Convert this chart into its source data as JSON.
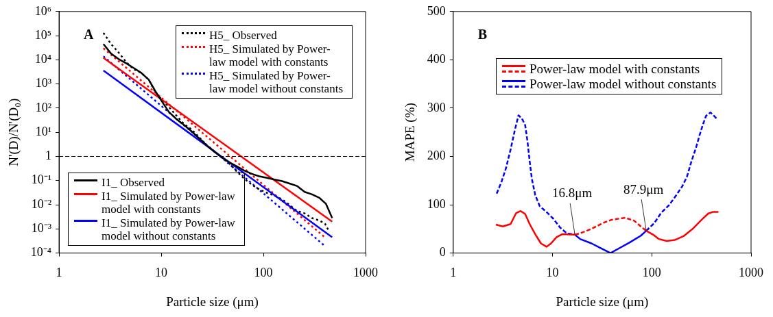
{
  "chart_data": [
    {
      "type": "line",
      "title": "A",
      "xlabel": "Particle size (μm)",
      "ylabel": "N'(D)/N'(D₀)",
      "log": "xy",
      "grid": false,
      "legend": "bottom left",
      "marker": "none",
      "xlim": [
        1,
        1000
      ],
      "xticks": [
        1,
        10,
        100,
        1000
      ],
      "ylim": [
        0.0001,
        1000000
      ],
      "yticks": [
        {
          "value": 1000000,
          "label": "10⁶"
        },
        {
          "value": 100000,
          "label": "10⁵"
        },
        {
          "value": 10000,
          "label": "10⁴"
        },
        {
          "value": 1000,
          "label": "10³"
        },
        {
          "value": 100,
          "label": "10²"
        },
        {
          "value": 10,
          "label": "10¹"
        },
        1,
        {
          "value": 0.1,
          "label": "10⁻¹"
        },
        {
          "value": 0.01,
          "label": "10⁻²"
        },
        {
          "value": 0.001,
          "label": "10⁻³"
        },
        {
          "value": 0.0001,
          "label": "10⁻⁴"
        }
      ],
      "ref_lines": [
        {
          "axis": "y",
          "value": 1,
          "color": "#000000",
          "line_style": "dashed"
        }
      ],
      "series": [
        {
          "name": "I1_ Observed",
          "color": "#000000",
          "line_style": "solid",
          "x": [
            2.72,
            3.23,
            3.83,
            4.54,
            5.37,
            6.37,
            7.55,
            8.7,
            10,
            11.9,
            14.1,
            16.7,
            19.8,
            23.4,
            27.8,
            32.9,
            39,
            46.2,
            54.8,
            64.9,
            76.9,
            91.1,
            108,
            128,
            152,
            180,
            213,
            253,
            299,
            355,
            409,
            471
          ],
          "values": [
            45000,
            18000,
            10700,
            7200,
            4600,
            2900,
            1500,
            530,
            210,
            69,
            35,
            20,
            11,
            5.7,
            2.9,
            1.6,
            0.92,
            0.58,
            0.39,
            0.26,
            0.19,
            0.15,
            0.13,
            0.11,
            0.095,
            0.076,
            0.06,
            0.034,
            0.027,
            0.019,
            0.011,
            0.0028
          ]
        },
        {
          "name": "I1_ Simulated by Power-law model with constants",
          "color": "#ff0000",
          "line_style": "solid",
          "x": [
            2.72,
            471
          ],
          "values": [
            12000,
            0.002
          ]
        },
        {
          "name": "I1_ Simulated by Power-law model without constants",
          "color": "#0000ff",
          "line_style": "solid",
          "x": [
            2.72,
            471
          ],
          "values": [
            3600,
            0.00045
          ]
        },
        {
          "name": "H5_ Observed",
          "color": "#000000",
          "line_style": "dotted",
          "x": [
            2.72,
            3.23,
            3.83,
            4.54,
            5.37,
            6.37,
            7.55,
            8.7,
            10,
            11.9,
            14.1,
            16.7,
            19.8,
            23.4,
            27.8,
            32.9,
            39,
            46.2,
            54.8,
            64.9,
            76.9,
            91.1,
            108,
            128,
            152,
            180,
            213,
            253,
            299,
            355,
            402,
            438
          ],
          "values": [
            130000,
            45000,
            20000,
            8100,
            4100,
            2900,
            1500,
            480,
            240,
            110,
            49,
            22,
            13,
            6.4,
            2.9,
            1.6,
            0.92,
            0.52,
            0.24,
            0.12,
            0.068,
            0.043,
            0.031,
            0.024,
            0.017,
            0.0098,
            0.0056,
            0.0044,
            0.0028,
            0.0022,
            0.0016,
            0.00081
          ]
        },
        {
          "name": "H5_ Simulated by Power-law model with constants",
          "color": "#ff0000",
          "line_style": "dotted",
          "x": [
            2.72,
            397
          ],
          "values": [
            30000,
            0.00046
          ]
        },
        {
          "name": "H5_ Simulated by Power-law model without constants",
          "color": "#0000ff",
          "line_style": "dotted",
          "x": [
            2.72,
            397
          ],
          "values": [
            14000,
            0.0002
          ]
        }
      ]
    },
    {
      "type": "line",
      "title": "B",
      "xlabel": "Particle size (μm)",
      "ylabel": "MAPE (%)",
      "log": "x",
      "grid": false,
      "legend": "top",
      "marker": "none",
      "xlim": [
        1,
        1000
      ],
      "xticks": [
        1,
        10,
        100,
        1000
      ],
      "ylim": [
        0,
        500
      ],
      "yticks": [
        0,
        100,
        200,
        300,
        400,
        500
      ],
      "annotations": [
        {
          "text": "16.8μm",
          "x": 16.8,
          "y": 38
        },
        {
          "text": "87.9μm",
          "x": 87.9,
          "y": 46
        }
      ],
      "series": [
        {
          "name": "Power-law model with constants",
          "color": "#ff0000",
          "line_style": "solid",
          "x": [
            2.69,
            3.15,
            3.78,
            4.31,
            4.78,
            5.3,
            5.89,
            6.7,
            7.64,
            8.7,
            9.66,
            11,
            12.5,
            16.8
          ],
          "values": [
            59,
            55,
            60,
            83,
            87,
            81,
            60,
            39,
            20,
            13,
            20,
            33,
            39,
            38
          ]
        },
        {
          "color": "#ff0000",
          "line_style": "dashed",
          "x": [
            16.8,
            19,
            24.7,
            32,
            39.5,
            54,
            66.5,
            77.6,
            87.9
          ],
          "values": [
            38,
            41,
            50,
            62,
            69,
            73,
            67,
            55,
            46
          ]
        },
        {
          "color": "#ff0000",
          "line_style": "solid",
          "x": [
            87.9,
            103.5,
            118,
            141.5,
            170,
            209,
            258,
            318,
            371,
            412,
            469
          ],
          "values": [
            46,
            38,
            29,
            25,
            27,
            35,
            50,
            69,
            82,
            85,
            85
          ]
        },
        {
          "color": "#0000ff",
          "line_style": "dashed",
          "x": [
            2.74,
            3.07,
            3.4,
            3.78,
            4.19,
            4.54,
            4.9,
            5.3,
            5.59,
            5.89,
            6.2,
            6.7,
            7.44,
            8.7,
            10.2,
            11.9,
            13.9,
            16.8
          ],
          "values": [
            123,
            148,
            176,
            214,
            256,
            285,
            279,
            265,
            232,
            190,
            153,
            120,
            97,
            85,
            71,
            53,
            41,
            38
          ]
        },
        {
          "name": "Power-law model without constants",
          "color": "#0000ff",
          "line_style": "solid",
          "x": [
            16.8,
            19,
            24.7,
            32,
            38.4,
            46.1,
            59.9,
            77.6,
            87.9
          ],
          "values": [
            38,
            29,
            20,
            8,
            0,
            9,
            22,
            36,
            46
          ]
        },
        {
          "color": "#0000ff",
          "line_style": "dashed",
          "x": [
            87.9,
            106,
            124,
            149,
            174,
            204,
            226,
            251,
            279,
            301,
            326,
            352,
            391,
            423,
            457
          ],
          "values": [
            46,
            62,
            83,
            99,
            118,
            139,
            158,
            190,
            218,
            242,
            265,
            284,
            291,
            284,
            277
          ]
        }
      ]
    }
  ]
}
